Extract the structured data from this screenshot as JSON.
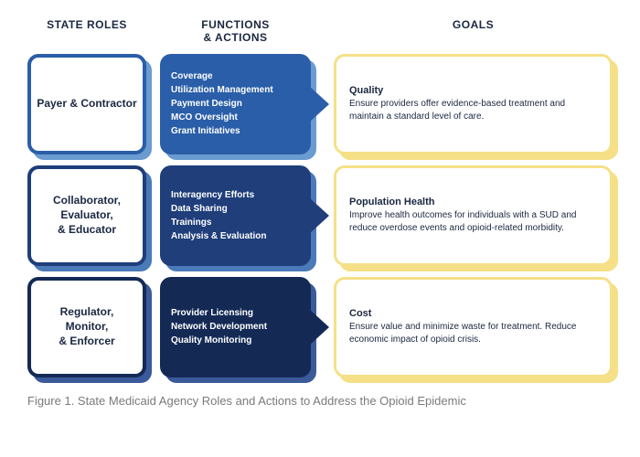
{
  "headers": {
    "col1": "STATE ROLES",
    "col2": "FUNCTIONS & ACTIONS",
    "col3": "GOALS"
  },
  "colors": {
    "role_shadow_1": "#6a9bd1",
    "role_border_1": "#2a5ea8",
    "role_shadow_2": "#4a7ab8",
    "role_border_2": "#1f3e7a",
    "role_shadow_3": "#3a5a9a",
    "role_border_3": "#142a55",
    "func_shadow_1": "#6a9bd1",
    "func_bg_1": "#2a5ea8",
    "func_shadow_2": "#4a7ab8",
    "func_bg_2": "#1f3e7a",
    "func_shadow_3": "#3a5a9a",
    "func_bg_3": "#142a55",
    "goal_accent": "#f5e087",
    "text_dark": "#1a2740",
    "caption": "#7a7a7a",
    "bg": "#ffffff"
  },
  "rows": [
    {
      "role": "Payer & Contractor",
      "functions": [
        "Coverage",
        "Utilization Management",
        "Payment Design",
        "MCO Oversight",
        "Grant Initiatives"
      ],
      "goal_title": "Quality",
      "goal_body": "Ensure providers offer evidence-based treatment and maintain a standard level of care."
    },
    {
      "role": "Collaborator, Evaluator, & Educator",
      "functions": [
        "Interagency Efforts",
        "Data Sharing",
        "Trainings",
        "Analysis & Evaluation"
      ],
      "goal_title": "Population Health",
      "goal_body": "Improve health outcomes for individuals with a SUD and reduce overdose events and opioid-related morbidity."
    },
    {
      "role": "Regulator, Monitor, & Enforcer",
      "functions": [
        "Provider Licensing",
        "Network Development",
        "Quality Monitoring"
      ],
      "goal_title": "Cost",
      "goal_body": "Ensure value and minimize waste for treatment. Reduce economic impact of opioid crisis."
    }
  ],
  "caption": "Figure 1. State Medicaid Agency Roles and Actions to Address the Opioid Epidemic"
}
